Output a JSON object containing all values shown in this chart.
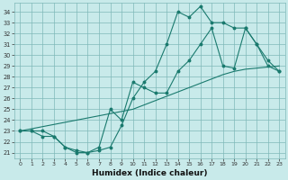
{
  "xlabel": "Humidex (Indice chaleur)",
  "bg_color": "#c8eaea",
  "grid_color": "#7fb8b8",
  "line_color": "#1a7a6e",
  "xlim": [
    -0.5,
    23.5
  ],
  "ylim": [
    20.5,
    34.8
  ],
  "yticks": [
    21,
    22,
    23,
    24,
    25,
    26,
    27,
    28,
    29,
    30,
    31,
    32,
    33,
    34
  ],
  "xticks": [
    0,
    1,
    2,
    3,
    4,
    5,
    6,
    7,
    8,
    9,
    10,
    11,
    12,
    13,
    14,
    15,
    16,
    17,
    18,
    19,
    20,
    21,
    22,
    23
  ],
  "line1_x": [
    0,
    1,
    2,
    3,
    4,
    5,
    6,
    7,
    8,
    9,
    10,
    11,
    12,
    13,
    14,
    15,
    16,
    17,
    18,
    19,
    20,
    21,
    22,
    23
  ],
  "line1_y": [
    23.0,
    23.0,
    23.0,
    22.5,
    21.5,
    21.0,
    21.0,
    21.2,
    21.5,
    23.5,
    26.0,
    27.5,
    28.5,
    31.0,
    34.0,
    33.5,
    34.5,
    33.0,
    33.0,
    32.5,
    32.5,
    31.0,
    29.0,
    28.5
  ],
  "line2_x": [
    0,
    1,
    2,
    3,
    4,
    5,
    6,
    7,
    8,
    9,
    10,
    11,
    12,
    13,
    14,
    15,
    16,
    17,
    18,
    19,
    20,
    21,
    22,
    23
  ],
  "line2_y": [
    23.0,
    23.0,
    22.5,
    22.5,
    21.5,
    21.2,
    21.0,
    21.5,
    25.0,
    24.0,
    27.5,
    27.0,
    26.5,
    26.5,
    28.5,
    29.5,
    31.0,
    32.5,
    29.0,
    28.8,
    32.5,
    31.0,
    29.5,
    28.5
  ],
  "line3_x": [
    0,
    1,
    2,
    3,
    4,
    5,
    6,
    7,
    8,
    9,
    10,
    11,
    12,
    13,
    14,
    15,
    16,
    17,
    18,
    19,
    20,
    21,
    22,
    23
  ],
  "line3_y": [
    23.0,
    23.2,
    23.4,
    23.6,
    23.8,
    24.0,
    24.2,
    24.4,
    24.6,
    24.8,
    25.0,
    25.4,
    25.8,
    26.2,
    26.6,
    27.0,
    27.4,
    27.8,
    28.2,
    28.5,
    28.7,
    28.8,
    28.9,
    29.0
  ]
}
